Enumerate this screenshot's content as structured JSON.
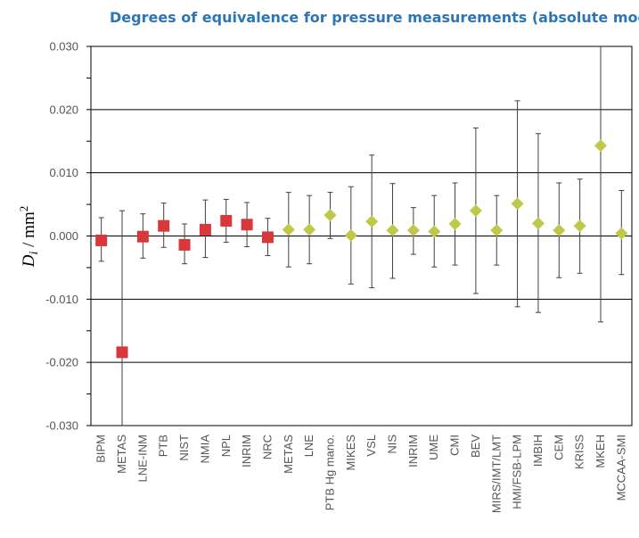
{
  "chart_data": {
    "type": "scatter",
    "title": "Degrees of equivalence for pressure measurements (absolute mode)",
    "ylabel": "D_i / mm²",
    "ylabel_parts": {
      "symbol": "D",
      "subscript": "i",
      "rest": " / mm",
      "sup": "2"
    },
    "ylim": [
      -0.03,
      0.03
    ],
    "yticks": [
      "0.030",
      "0.020",
      "0.010",
      "0.000",
      "-0.010",
      "-0.020",
      "-0.030"
    ],
    "ytick_values": [
      0.03,
      0.02,
      0.01,
      0.0,
      -0.01,
      -0.02,
      -0.03
    ],
    "grid": true,
    "categories": [
      "BIPM",
      "METAS",
      "LNE-INM",
      "PTB",
      "NIST",
      "NMIA",
      "NPL",
      "INRIM",
      "NRC",
      "METAS",
      "LNE",
      "PTB Hg mano.",
      "MIKES",
      "VSL",
      "NIS",
      "INRIM",
      "UME",
      "CMI",
      "BEV",
      "MIRS/IMT/LMT",
      "HMI/FSB-LPM",
      "IMBIH",
      "CEM",
      "KRISS",
      "MKEH",
      "MCCAA-SMI"
    ],
    "series": [
      {
        "marker": "square",
        "color": "#d9383a",
        "indices": [
          0,
          1,
          2,
          3,
          4,
          5,
          6,
          7,
          8
        ],
        "values": [
          -0.0007,
          -0.0184,
          -0.0001,
          0.0016,
          -0.0014,
          0.001,
          0.0024,
          0.0018,
          -0.0002
        ],
        "upper": [
          0.0029,
          0.004,
          0.0035,
          0.0052,
          0.0019,
          0.0057,
          0.0058,
          0.0053,
          0.0028
        ],
        "lower": [
          -0.004,
          -0.03,
          -0.0035,
          -0.0018,
          -0.0044,
          -0.0034,
          -0.001,
          -0.0017,
          -0.0031
        ]
      },
      {
        "marker": "diamond",
        "color": "#bfc847",
        "indices": [
          9,
          10,
          11,
          12,
          13,
          14,
          15,
          16,
          17,
          18,
          19,
          20,
          21,
          22,
          23,
          24,
          25
        ],
        "values": [
          0.001,
          0.001,
          0.0033,
          0.0001,
          0.0023,
          0.0009,
          0.0009,
          0.0007,
          0.0019,
          0.004,
          0.0009,
          0.0051,
          0.002,
          0.0009,
          0.0016,
          0.0143,
          0.0004
        ],
        "upper": [
          0.0069,
          0.0064,
          0.0069,
          0.0078,
          0.0128,
          0.0083,
          0.0045,
          0.0064,
          0.0084,
          0.0171,
          0.0064,
          0.0214,
          0.0162,
          0.0084,
          0.009,
          0.03,
          0.0072
        ],
        "lower": [
          -0.0049,
          -0.0044,
          -0.0004,
          -0.0076,
          -0.0082,
          -0.0067,
          -0.0029,
          -0.0049,
          -0.0046,
          -0.0091,
          -0.0046,
          -0.0112,
          -0.0121,
          -0.0066,
          -0.0059,
          -0.0136,
          -0.0061
        ]
      }
    ]
  },
  "colors": {
    "title": "#2e75b6",
    "square": "#d9383a",
    "diamond": "#bfc847",
    "gridline": "#000000",
    "errorbar": "#404040"
  }
}
